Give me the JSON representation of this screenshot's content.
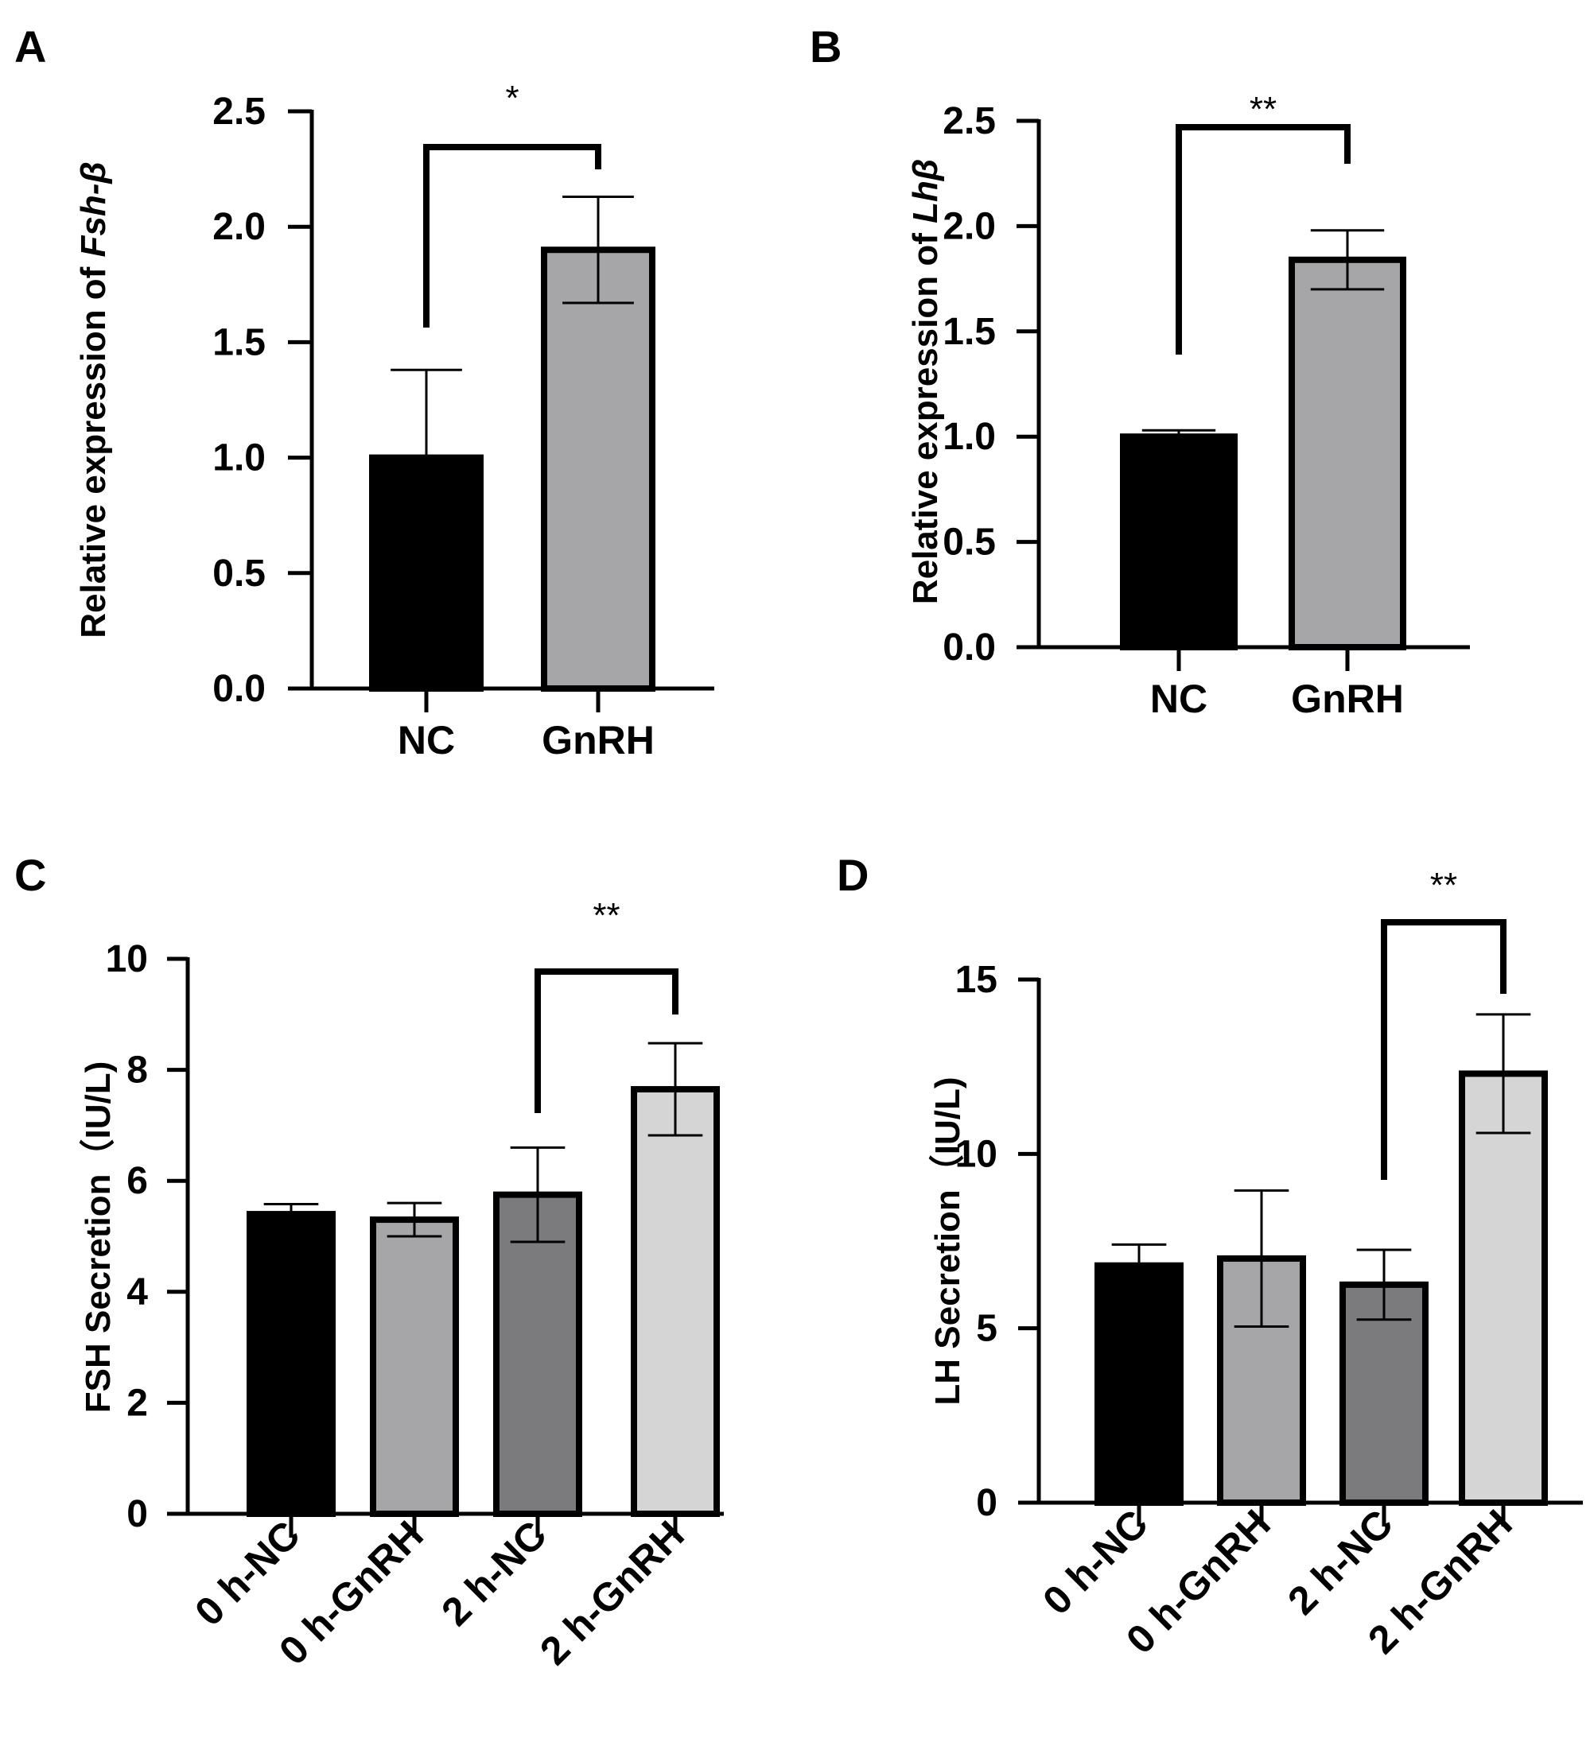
{
  "colors": {
    "axis": "#000000",
    "bar_outline": "#000000"
  },
  "chart_data": [
    {
      "panel": "A",
      "type": "bar",
      "title": "",
      "xlabel": "",
      "ylabel_prefix": "Relative expression of ",
      "ylabel_gene": "Fsh-β",
      "categories": [
        "NC",
        "GnRH"
      ],
      "values": [
        1.0,
        1.9
      ],
      "errors": [
        0.38,
        0.23
      ],
      "bar_colors": [
        "#000000",
        "#a6a6a8"
      ],
      "ylim": [
        0,
        2.5
      ],
      "yticks": [
        0,
        0.5,
        1.0,
        1.5,
        2.0,
        2.5
      ],
      "ytick_labels": [
        "0.0",
        "0.5",
        "1.0",
        "1.5",
        "2.0",
        "2.5"
      ],
      "grid": false,
      "significance": {
        "from": 0,
        "to": 1,
        "label": "*"
      }
    },
    {
      "panel": "B",
      "type": "bar",
      "title": "",
      "xlabel": "",
      "ylabel_prefix": "Relative expression of ",
      "ylabel_gene": "Lhβ",
      "categories": [
        "NC",
        "GnRH"
      ],
      "values": [
        1.0,
        1.84
      ],
      "errors": [
        0.03,
        0.14
      ],
      "bar_colors": [
        "#000000",
        "#a6a6a8"
      ],
      "ylim": [
        0,
        2.5
      ],
      "yticks": [
        0,
        0.5,
        1.0,
        1.5,
        2.0,
        2.5
      ],
      "ytick_labels": [
        "0.0",
        "0.5",
        "1.0",
        "1.5",
        "2.0",
        "2.5"
      ],
      "grid": false,
      "significance": {
        "from": 0,
        "to": 1,
        "label": "**"
      }
    },
    {
      "panel": "C",
      "type": "bar",
      "title": "",
      "xlabel": "",
      "ylabel": "FSH Secretion（IU/L)",
      "categories": [
        "0 h-NC",
        "0 h-GnRH",
        "2 h-NC",
        "2 h-GnRH"
      ],
      "values": [
        5.4,
        5.3,
        5.75,
        7.65
      ],
      "errors": [
        0.18,
        0.3,
        0.85,
        0.83
      ],
      "bar_colors": [
        "#000000",
        "#a6a6a8",
        "#7b7b7d",
        "#d5d5d5"
      ],
      "ylim": [
        0,
        10
      ],
      "yticks": [
        0,
        2,
        4,
        6,
        8,
        10
      ],
      "ytick_labels": [
        "0",
        "2",
        "4",
        "6",
        "8",
        "10"
      ],
      "grid": false,
      "significance": {
        "from": 2,
        "to": 3,
        "label": "**"
      }
    },
    {
      "panel": "D",
      "type": "bar",
      "title": "",
      "xlabel": "",
      "ylabel": "LH Secretion（IU/L)",
      "categories": [
        "0 h-NC",
        "0 h-GnRH",
        "2 h-NC",
        "2 h-GnRH"
      ],
      "values": [
        6.8,
        7.0,
        6.25,
        12.3
      ],
      "errors": [
        0.6,
        1.95,
        1.0,
        1.7
      ],
      "bar_colors": [
        "#000000",
        "#a6a6a8",
        "#7b7b7d",
        "#d5d5d5"
      ],
      "ylim": [
        0,
        15
      ],
      "yticks": [
        0,
        5,
        10,
        15
      ],
      "ytick_labels": [
        "0",
        "5",
        "10",
        "15"
      ],
      "grid": false,
      "significance": {
        "from": 2,
        "to": 3,
        "label": "**"
      }
    }
  ]
}
